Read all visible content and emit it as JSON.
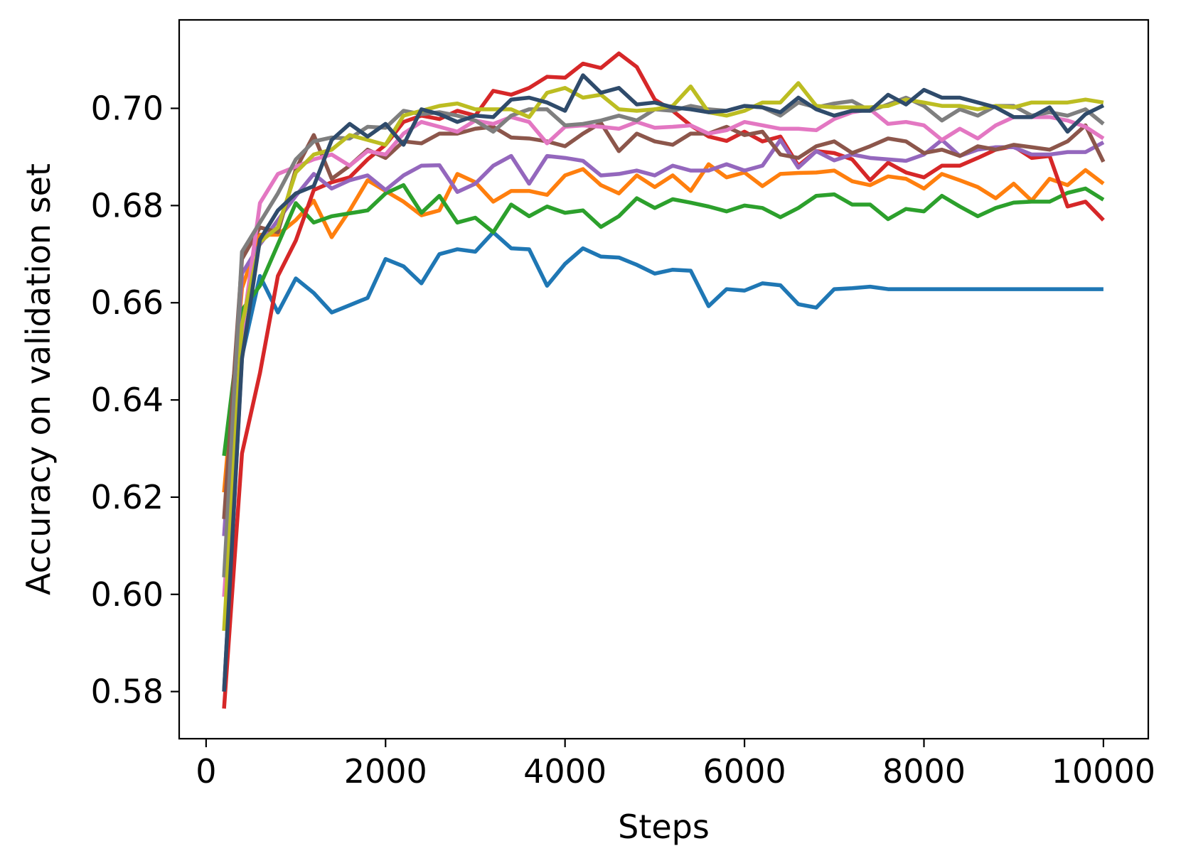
{
  "chart_data": {
    "type": "line",
    "xlabel": "Steps",
    "ylabel": "Accuracy on validation set",
    "xlim": [
      -300,
      10500
    ],
    "ylim": [
      0.5703,
      0.7182
    ],
    "xticks": [
      {
        "value": 0,
        "label": "0"
      },
      {
        "value": 2000,
        "label": "2000"
      },
      {
        "value": 4000,
        "label": "4000"
      },
      {
        "value": 6000,
        "label": "6000"
      },
      {
        "value": 8000,
        "label": "8000"
      },
      {
        "value": 10000,
        "label": "10000"
      }
    ],
    "yticks": [
      {
        "value": 0.58,
        "label": "0.58"
      },
      {
        "value": 0.6,
        "label": "0.60"
      },
      {
        "value": 0.62,
        "label": "0.62"
      },
      {
        "value": 0.64,
        "label": "0.64"
      },
      {
        "value": 0.66,
        "label": "0.66"
      },
      {
        "value": 0.68,
        "label": "0.68"
      },
      {
        "value": 0.7,
        "label": "0.70"
      }
    ],
    "grid": false,
    "legend": "none",
    "x": [
      200,
      400,
      600,
      800,
      1000,
      1200,
      1400,
      1600,
      1800,
      2000,
      2200,
      2400,
      2600,
      2800,
      3000,
      3200,
      3400,
      3600,
      3800,
      4000,
      4200,
      4400,
      4600,
      4800,
      5000,
      5200,
      5400,
      5600,
      5800,
      6000,
      6200,
      6400,
      6600,
      6800,
      7000,
      7200,
      7400,
      7600,
      7800,
      8000,
      8200,
      8400,
      8600,
      8800,
      9000,
      9200,
      9400,
      9600,
      9800,
      10000
    ],
    "series": [
      {
        "color": "#1f77b4",
        "values": [
          0.58,
          0.649,
          0.6655,
          0.658,
          0.665,
          0.662,
          0.658,
          0.6595,
          0.661,
          0.669,
          0.6675,
          0.664,
          0.67,
          0.671,
          0.6705,
          0.6745,
          0.6712,
          0.671,
          0.6635,
          0.668,
          0.6712,
          0.6695,
          0.6693,
          0.6678,
          0.666,
          0.6668,
          0.6666,
          0.6593,
          0.6628,
          0.6625,
          0.664,
          0.6636,
          0.6597,
          0.659,
          0.6628,
          0.663,
          0.6633,
          0.6628,
          0.6628,
          0.6628,
          0.6628,
          0.6628,
          0.6628,
          0.6628,
          0.6628,
          0.6628,
          0.6628,
          0.6628,
          0.6628,
          0.6628
        ]
      },
      {
        "color": "#ff7f0e",
        "values": [
          0.621,
          0.663,
          0.674,
          0.674,
          0.677,
          0.681,
          0.6735,
          0.679,
          0.6852,
          0.683,
          0.6808,
          0.678,
          0.679,
          0.6865,
          0.6848,
          0.6808,
          0.683,
          0.683,
          0.6822,
          0.6862,
          0.6875,
          0.6842,
          0.6825,
          0.6862,
          0.6838,
          0.6862,
          0.683,
          0.6885,
          0.6858,
          0.6868,
          0.684,
          0.6865,
          0.6867,
          0.6868,
          0.6872,
          0.685,
          0.6842,
          0.686,
          0.6855,
          0.6835,
          0.6865,
          0.6852,
          0.6838,
          0.6815,
          0.6845,
          0.681,
          0.6855,
          0.6842,
          0.6873,
          0.6845
        ]
      },
      {
        "color": "#2ca02c",
        "values": [
          0.6285,
          0.6585,
          0.6635,
          0.672,
          0.6805,
          0.6765,
          0.6778,
          0.6784,
          0.679,
          0.6825,
          0.6842,
          0.6785,
          0.682,
          0.6765,
          0.6775,
          0.6745,
          0.6802,
          0.6778,
          0.6798,
          0.6785,
          0.679,
          0.6756,
          0.6778,
          0.6815,
          0.6795,
          0.6813,
          0.6806,
          0.6798,
          0.6788,
          0.68,
          0.6795,
          0.6776,
          0.6795,
          0.682,
          0.6823,
          0.6802,
          0.6802,
          0.6772,
          0.6793,
          0.6788,
          0.682,
          0.6798,
          0.6778,
          0.6795,
          0.6806,
          0.6808,
          0.6808,
          0.6826,
          0.6835,
          0.6812
        ]
      },
      {
        "color": "#d62728",
        "values": [
          0.5765,
          0.629,
          0.6455,
          0.6655,
          0.6728,
          0.6832,
          0.6848,
          0.6858,
          0.6895,
          0.6925,
          0.6972,
          0.6985,
          0.6978,
          0.6995,
          0.6985,
          0.7036,
          0.7028,
          0.7042,
          0.7065,
          0.7063,
          0.7092,
          0.7083,
          0.7113,
          0.7085,
          0.7018,
          0.6995,
          0.6965,
          0.6942,
          0.6933,
          0.6952,
          0.6932,
          0.6942,
          0.6882,
          0.6912,
          0.6908,
          0.6895,
          0.6852,
          0.6888,
          0.6868,
          0.6858,
          0.6882,
          0.6882,
          0.6898,
          0.6915,
          0.6922,
          0.6898,
          0.6902,
          0.6798,
          0.6808,
          0.677
        ]
      },
      {
        "color": "#9467bd",
        "values": [
          0.612,
          0.666,
          0.672,
          0.677,
          0.682,
          0.6865,
          0.6835,
          0.6852,
          0.6862,
          0.6832,
          0.6862,
          0.6882,
          0.6883,
          0.6828,
          0.6845,
          0.6882,
          0.6902,
          0.6845,
          0.6902,
          0.6898,
          0.6892,
          0.6862,
          0.6865,
          0.6872,
          0.6862,
          0.6882,
          0.6872,
          0.6872,
          0.6885,
          0.6872,
          0.6882,
          0.6935,
          0.6878,
          0.6912,
          0.6893,
          0.6905,
          0.6898,
          0.6895,
          0.6892,
          0.6905,
          0.6935,
          0.6902,
          0.6915,
          0.692,
          0.692,
          0.6905,
          0.6905,
          0.691,
          0.691,
          0.693
        ]
      },
      {
        "color": "#8c564b",
        "values": [
          0.6155,
          0.669,
          0.6755,
          0.6745,
          0.6875,
          0.6945,
          0.6855,
          0.6882,
          0.6915,
          0.6898,
          0.6932,
          0.6928,
          0.6948,
          0.6948,
          0.6958,
          0.6962,
          0.694,
          0.6938,
          0.6932,
          0.6922,
          0.6948,
          0.697,
          0.6912,
          0.6948,
          0.6932,
          0.6925,
          0.6948,
          0.6948,
          0.6962,
          0.6945,
          0.6952,
          0.6905,
          0.6898,
          0.6922,
          0.6932,
          0.6908,
          0.6922,
          0.6938,
          0.6932,
          0.6908,
          0.6915,
          0.6902,
          0.6922,
          0.6915,
          0.6925,
          0.692,
          0.6915,
          0.6932,
          0.6965,
          0.689
        ]
      },
      {
        "color": "#e377c2",
        "values": [
          0.5995,
          0.6535,
          0.6805,
          0.6865,
          0.688,
          0.6895,
          0.6905,
          0.6882,
          0.6912,
          0.6905,
          0.6948,
          0.6972,
          0.6962,
          0.6952,
          0.6975,
          0.6968,
          0.6982,
          0.6972,
          0.6928,
          0.6962,
          0.6965,
          0.6962,
          0.6958,
          0.6972,
          0.696,
          0.6962,
          0.6965,
          0.6948,
          0.6955,
          0.6972,
          0.6965,
          0.6958,
          0.6958,
          0.6955,
          0.6978,
          0.6992,
          0.6998,
          0.6968,
          0.6972,
          0.6965,
          0.6935,
          0.6958,
          0.6938,
          0.6965,
          0.6982,
          0.6982,
          0.6982,
          0.6975,
          0.6962,
          0.6938
        ]
      },
      {
        "color": "#7f7f7f",
        "values": [
          0.6035,
          0.6705,
          0.6765,
          0.6825,
          0.6895,
          0.6932,
          0.694,
          0.6938,
          0.6962,
          0.696,
          0.6995,
          0.6988,
          0.6992,
          0.6985,
          0.6975,
          0.6952,
          0.6985,
          0.6998,
          0.6998,
          0.6965,
          0.6968,
          0.6975,
          0.6985,
          0.6975,
          0.6998,
          0.6995,
          0.7005,
          0.6998,
          0.6995,
          0.7005,
          0.7002,
          0.6985,
          0.7012,
          0.7002,
          0.701,
          0.7015,
          0.6995,
          0.7008,
          0.7022,
          0.7005,
          0.6975,
          0.6998,
          0.6985,
          0.7005,
          0.7005,
          0.6985,
          0.6992,
          0.6985,
          0.6998,
          0.6968
        ]
      },
      {
        "color": "#bcbd22",
        "values": [
          0.5925,
          0.6555,
          0.6725,
          0.6755,
          0.6868,
          0.6905,
          0.6915,
          0.6945,
          0.6935,
          0.6925,
          0.6985,
          0.6995,
          0.7005,
          0.701,
          0.6998,
          0.6998,
          0.6998,
          0.6982,
          0.7032,
          0.7042,
          0.7022,
          0.7028,
          0.6998,
          0.6995,
          0.6998,
          0.7005,
          0.7045,
          0.6992,
          0.6985,
          0.6995,
          0.7012,
          0.7012,
          0.7052,
          0.7005,
          0.7002,
          0.7002,
          0.7002,
          0.7005,
          0.7018,
          0.7012,
          0.7005,
          0.7005,
          0.6998,
          0.7005,
          0.7002,
          0.7012,
          0.7012,
          0.7012,
          0.7018,
          0.7012
        ]
      },
      {
        "color": "#2f4b6b",
        "values": [
          0.58,
          0.6485,
          0.673,
          0.679,
          0.6825,
          0.684,
          0.6935,
          0.6968,
          0.6942,
          0.6968,
          0.6925,
          0.6998,
          0.6988,
          0.6972,
          0.6985,
          0.6982,
          0.7018,
          0.7022,
          0.7012,
          0.6995,
          0.7068,
          0.7032,
          0.7042,
          0.7008,
          0.7012,
          0.7002,
          0.6998,
          0.6992,
          0.6995,
          0.7005,
          0.7002,
          0.6992,
          0.7022,
          0.6998,
          0.6985,
          0.6995,
          0.6995,
          0.7028,
          0.7008,
          0.7038,
          0.7022,
          0.7022,
          0.7012,
          0.7002,
          0.6982,
          0.6982,
          0.7002,
          0.6952,
          0.6988,
          0.7006
        ]
      }
    ]
  }
}
